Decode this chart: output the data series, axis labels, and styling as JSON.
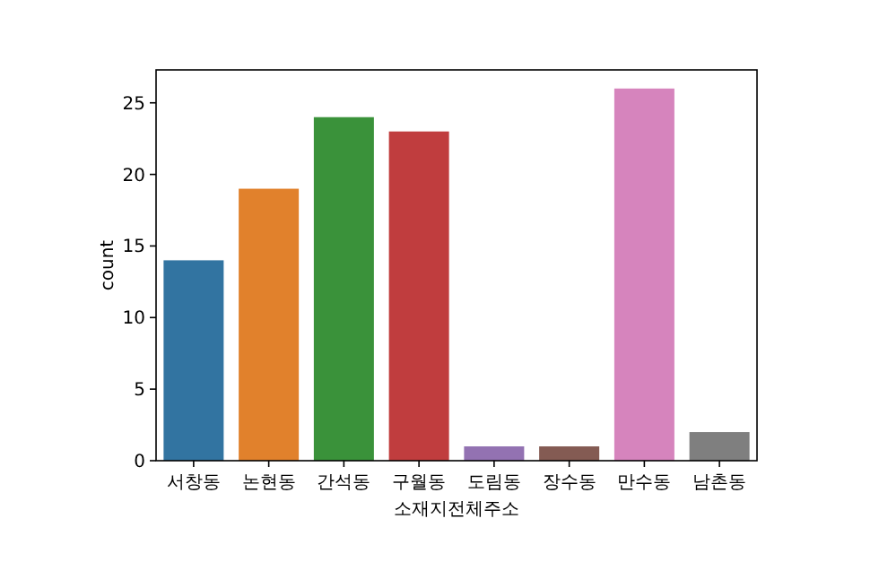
{
  "chart_data": {
    "type": "bar",
    "categories": [
      "서창동",
      "논현동",
      "간석동",
      "구월동",
      "도림동",
      "장수동",
      "만수동",
      "남촌동"
    ],
    "values": [
      14,
      19,
      24,
      23,
      1,
      1,
      26,
      2
    ],
    "colors": [
      "#3274a1",
      "#e1812c",
      "#3a923a",
      "#c03d3e",
      "#9372b2",
      "#845b53",
      "#d684bd",
      "#7f7f7f"
    ],
    "xlabel": "소재지전체주소",
    "ylabel": "count",
    "ylim": [
      0,
      27.3
    ],
    "yticks": [
      0,
      5,
      10,
      15,
      20,
      25
    ]
  }
}
